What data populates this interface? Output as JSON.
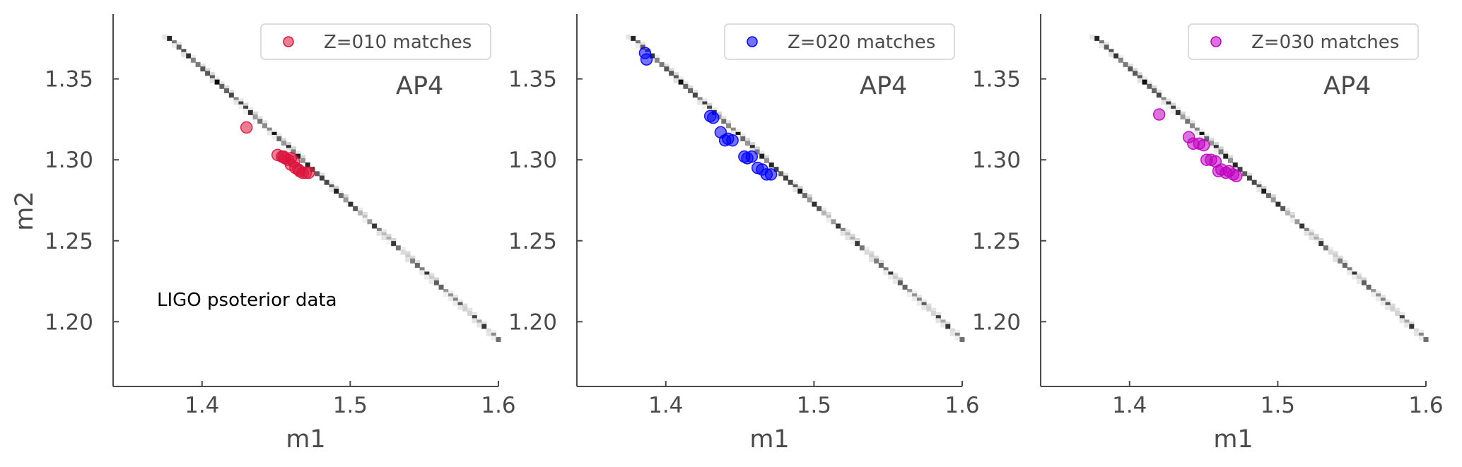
{
  "chart_data": [
    {
      "type": "scatter",
      "panel_label": "AP4",
      "xlabel": "m1",
      "ylabel": "m2",
      "xlim": [
        1.34,
        1.6
      ],
      "ylim": [
        1.16,
        1.39
      ],
      "xticks": [
        1.4,
        1.5,
        1.6
      ],
      "xtick_labels": [
        "1.4",
        "1.5",
        "1.6"
      ],
      "yticks": [
        1.2,
        1.25,
        1.3,
        1.35
      ],
      "ytick_labels": [
        "1.20",
        "1.25",
        "1.30",
        "1.35"
      ],
      "grid": false,
      "legend_position": "top-right",
      "annotation": "LIGO psoterior data",
      "background": {
        "kind": "posterior-band",
        "x_range": [
          1.378,
          1.6
        ],
        "y_range": [
          1.375,
          1.189
        ]
      },
      "series": [
        {
          "name": "Z=010 matches",
          "color": "#dc143c",
          "x": [
            1.43,
            1.451,
            1.454,
            1.456,
            1.458,
            1.46,
            1.462,
            1.463,
            1.465,
            1.466,
            1.468,
            1.47,
            1.472,
            1.455,
            1.46
          ],
          "y": [
            1.32,
            1.303,
            1.302,
            1.301,
            1.3,
            1.301,
            1.299,
            1.295,
            1.294,
            1.293,
            1.292,
            1.292,
            1.292,
            1.302,
            1.297
          ]
        }
      ]
    },
    {
      "type": "scatter",
      "panel_label": "AP4",
      "xlabel": "m1",
      "ylabel": "",
      "xlim": [
        1.34,
        1.6
      ],
      "ylim": [
        1.16,
        1.39
      ],
      "xticks": [
        1.4,
        1.5,
        1.6
      ],
      "xtick_labels": [
        "1.4",
        "1.5",
        "1.6"
      ],
      "yticks": [
        1.2,
        1.25,
        1.3,
        1.35
      ],
      "ytick_labels": [
        "1.20",
        "1.25",
        "1.30",
        "1.35"
      ],
      "grid": false,
      "legend_position": "top-right",
      "background": {
        "kind": "posterior-band",
        "x_range": [
          1.378,
          1.6
        ],
        "y_range": [
          1.375,
          1.189
        ]
      },
      "series": [
        {
          "name": "Z=020 matches",
          "color": "#0000ff",
          "x": [
            1.386,
            1.387,
            1.43,
            1.432,
            1.437,
            1.44,
            1.442,
            1.445,
            1.453,
            1.455,
            1.458,
            1.462,
            1.465,
            1.468,
            1.471
          ],
          "y": [
            1.366,
            1.362,
            1.327,
            1.326,
            1.317,
            1.312,
            1.313,
            1.312,
            1.302,
            1.301,
            1.302,
            1.295,
            1.294,
            1.291,
            1.291
          ]
        }
      ]
    },
    {
      "type": "scatter",
      "panel_label": "AP4",
      "xlabel": "m1",
      "ylabel": "",
      "xlim": [
        1.34,
        1.6
      ],
      "ylim": [
        1.16,
        1.39
      ],
      "xticks": [
        1.4,
        1.5,
        1.6
      ],
      "xtick_labels": [
        "1.4",
        "1.5",
        "1.6"
      ],
      "yticks": [
        1.2,
        1.25,
        1.3,
        1.35
      ],
      "ytick_labels": [
        "1.20",
        "1.25",
        "1.30",
        "1.35"
      ],
      "grid": false,
      "legend_position": "top-right",
      "background": {
        "kind": "posterior-band",
        "x_range": [
          1.378,
          1.6
        ],
        "y_range": [
          1.375,
          1.189
        ]
      },
      "series": [
        {
          "name": "Z=030 matches",
          "color": "#c000c0",
          "x": [
            1.42,
            1.44,
            1.443,
            1.447,
            1.45,
            1.452,
            1.455,
            1.458,
            1.46,
            1.462,
            1.465,
            1.467,
            1.47,
            1.472
          ],
          "y": [
            1.328,
            1.314,
            1.31,
            1.31,
            1.309,
            1.3,
            1.3,
            1.299,
            1.293,
            1.294,
            1.292,
            1.293,
            1.291,
            1.29
          ]
        }
      ]
    }
  ]
}
